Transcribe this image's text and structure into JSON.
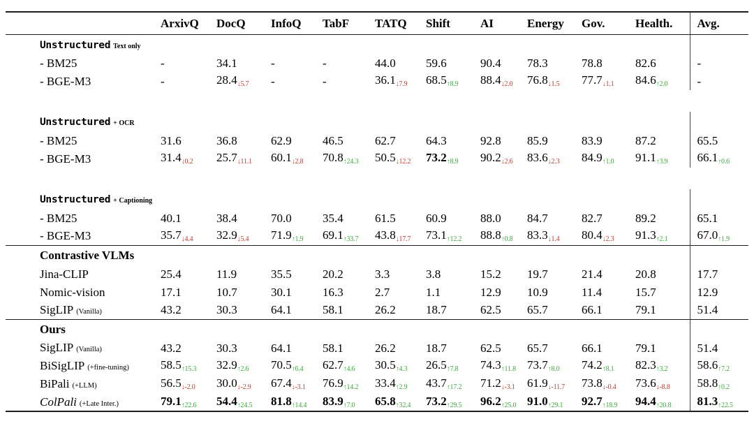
{
  "page": {
    "background": "#ffffff"
  },
  "colors": {
    "up": "#3aa83a",
    "down": "#c0392b",
    "text": "#000000",
    "rule": "#1c1c1c"
  },
  "glyphs": {
    "up_arrow": "↑",
    "down_arrow": "↓"
  },
  "table": {
    "label_col_header": "",
    "columns": [
      "ArxivQ",
      "DocQ",
      "InfoQ",
      "TabF",
      "TATQ",
      "Shift",
      "AI",
      "Energy",
      "Gov.",
      "Health.",
      "Avg."
    ],
    "sections": [
      {
        "id": "unstructured-text-only",
        "head": {
          "text": "Unstructured",
          "style": "mono",
          "note": "Text only",
          "note_style": "bold"
        },
        "rule_before": false,
        "gap_after": true,
        "rows": [
          {
            "label": {
              "text": "- BM25"
            },
            "cells": [
              {
                "v": "-"
              },
              {
                "v": "34.1"
              },
              {
                "v": "-"
              },
              {
                "v": "-"
              },
              {
                "v": "44.0"
              },
              {
                "v": "59.6"
              },
              {
                "v": "90.4"
              },
              {
                "v": "78.3"
              },
              {
                "v": "78.8"
              },
              {
                "v": "82.6"
              },
              {
                "v": "-"
              }
            ]
          },
          {
            "label": {
              "text": "- BGE-M3"
            },
            "cells": [
              {
                "v": "-"
              },
              {
                "v": "28.4",
                "d": "5.7",
                "dir": "down"
              },
              {
                "v": "-"
              },
              {
                "v": "-"
              },
              {
                "v": "36.1",
                "d": "7.9",
                "dir": "down"
              },
              {
                "v": "68.5",
                "d": "8.9",
                "dir": "up"
              },
              {
                "v": "88.4",
                "d": "2.0",
                "dir": "down"
              },
              {
                "v": "76.8",
                "d": "1.5",
                "dir": "down"
              },
              {
                "v": "77.7",
                "d": "1.1",
                "dir": "down"
              },
              {
                "v": "84.6",
                "d": "2.0",
                "dir": "up"
              },
              {
                "v": "-"
              }
            ]
          }
        ]
      },
      {
        "id": "unstructured-ocr",
        "head": {
          "text": "Unstructured",
          "style": "mono",
          "note": "+ OCR",
          "note_style": "bold"
        },
        "rule_before": false,
        "gap_after": true,
        "rows": [
          {
            "label": {
              "text": "- BM25"
            },
            "cells": [
              {
                "v": "31.6"
              },
              {
                "v": "36.8"
              },
              {
                "v": "62.9"
              },
              {
                "v": "46.5"
              },
              {
                "v": "62.7"
              },
              {
                "v": "64.3"
              },
              {
                "v": "92.8"
              },
              {
                "v": "85.9"
              },
              {
                "v": "83.9"
              },
              {
                "v": "87.2"
              },
              {
                "v": "65.5"
              }
            ]
          },
          {
            "label": {
              "text": "- BGE-M3"
            },
            "cells": [
              {
                "v": "31.4",
                "d": "0.2",
                "dir": "down"
              },
              {
                "v": "25.7",
                "d": "11.1",
                "dir": "down"
              },
              {
                "v": "60.1",
                "d": "2.8",
                "dir": "down"
              },
              {
                "v": "70.8",
                "d": "24.3",
                "dir": "up"
              },
              {
                "v": "50.5",
                "d": "12.2",
                "dir": "down"
              },
              {
                "v": "73.2",
                "b": true,
                "d": "8.9",
                "dir": "up"
              },
              {
                "v": "90.2",
                "d": "2.6",
                "dir": "down"
              },
              {
                "v": "83.6",
                "d": "2.3",
                "dir": "down"
              },
              {
                "v": "84.9",
                "d": "1.0",
                "dir": "up"
              },
              {
                "v": "91.1",
                "d": "3.9",
                "dir": "up"
              },
              {
                "v": "66.1",
                "d": "0.6",
                "dir": "up"
              }
            ]
          }
        ]
      },
      {
        "id": "unstructured-captioning",
        "head": {
          "text": "Unstructured",
          "style": "mono",
          "note": "+ Captioning",
          "note_style": "bold"
        },
        "rule_before": false,
        "gap_after": false,
        "rows": [
          {
            "label": {
              "text": "- BM25"
            },
            "cells": [
              {
                "v": "40.1"
              },
              {
                "v": "38.4"
              },
              {
                "v": "70.0"
              },
              {
                "v": "35.4"
              },
              {
                "v": "61.5"
              },
              {
                "v": "60.9"
              },
              {
                "v": "88.0"
              },
              {
                "v": "84.7"
              },
              {
                "v": "82.7"
              },
              {
                "v": "89.2"
              },
              {
                "v": "65.1"
              }
            ]
          },
          {
            "label": {
              "text": "- BGE-M3"
            },
            "cells": [
              {
                "v": "35.7",
                "d": "4.4",
                "dir": "down"
              },
              {
                "v": "32.9",
                "d": "5.4",
                "dir": "down"
              },
              {
                "v": "71.9",
                "d": "1.9",
                "dir": "up"
              },
              {
                "v": "69.1",
                "d": "33.7",
                "dir": "up"
              },
              {
                "v": "43.8",
                "d": "17.7",
                "dir": "down"
              },
              {
                "v": "73.1",
                "d": "12.2",
                "dir": "up"
              },
              {
                "v": "88.8",
                "d": "0.8",
                "dir": "up"
              },
              {
                "v": "83.3",
                "d": "1.4",
                "dir": "down"
              },
              {
                "v": "80.4",
                "d": "2.3",
                "dir": "down"
              },
              {
                "v": "91.3",
                "d": "2.1",
                "dir": "up"
              },
              {
                "v": "67.0",
                "d": "1.9",
                "dir": "up"
              }
            ]
          }
        ]
      },
      {
        "id": "contrastive-vlms",
        "head": {
          "text": "Contrastive VLMs",
          "style": "bold"
        },
        "rule_before": true,
        "gap_after": false,
        "rows": [
          {
            "label": {
              "text": "Jina-CLIP"
            },
            "cells": [
              {
                "v": "25.4"
              },
              {
                "v": "11.9"
              },
              {
                "v": "35.5"
              },
              {
                "v": "20.2"
              },
              {
                "v": "3.3"
              },
              {
                "v": "3.8"
              },
              {
                "v": "15.2"
              },
              {
                "v": "19.7"
              },
              {
                "v": "21.4"
              },
              {
                "v": "20.8"
              },
              {
                "v": "17.7"
              }
            ]
          },
          {
            "label": {
              "text": "Nomic-vision"
            },
            "cells": [
              {
                "v": "17.1"
              },
              {
                "v": "10.7"
              },
              {
                "v": "30.1"
              },
              {
                "v": "16.3"
              },
              {
                "v": "2.7"
              },
              {
                "v": "1.1"
              },
              {
                "v": "12.9"
              },
              {
                "v": "10.9"
              },
              {
                "v": "11.4"
              },
              {
                "v": "15.7"
              },
              {
                "v": "12.9"
              }
            ]
          },
          {
            "label": {
              "text": "SigLIP",
              "note": "(Vanilla)",
              "note_style": "normal"
            },
            "cells": [
              {
                "v": "43.2"
              },
              {
                "v": "30.3"
              },
              {
                "v": "64.1"
              },
              {
                "v": "58.1"
              },
              {
                "v": "26.2"
              },
              {
                "v": "18.7"
              },
              {
                "v": "62.5"
              },
              {
                "v": "65.7"
              },
              {
                "v": "66.1"
              },
              {
                "v": "79.1"
              },
              {
                "v": "51.4"
              }
            ]
          }
        ]
      },
      {
        "id": "ours",
        "head": {
          "text": "Ours",
          "style": "bold"
        },
        "rule_before": true,
        "gap_after": false,
        "rows": [
          {
            "label": {
              "text": "SigLIP",
              "note": "(Vanilla)",
              "note_style": "normal"
            },
            "cells": [
              {
                "v": "43.2"
              },
              {
                "v": "30.3"
              },
              {
                "v": "64.1"
              },
              {
                "v": "58.1"
              },
              {
                "v": "26.2"
              },
              {
                "v": "18.7"
              },
              {
                "v": "62.5"
              },
              {
                "v": "65.7"
              },
              {
                "v": "66.1"
              },
              {
                "v": "79.1"
              },
              {
                "v": "51.4"
              }
            ]
          },
          {
            "label": {
              "text": "BiSigLIP",
              "note": "(+fine-tuning)",
              "note_style": "normal"
            },
            "cells": [
              {
                "v": "58.5",
                "d": "15.3",
                "dir": "up"
              },
              {
                "v": "32.9",
                "d": "2.6",
                "dir": "up"
              },
              {
                "v": "70.5",
                "d": "6.4",
                "dir": "up"
              },
              {
                "v": "62.7",
                "d": "4.6",
                "dir": "up"
              },
              {
                "v": "30.5",
                "d": "4.3",
                "dir": "up"
              },
              {
                "v": "26.5",
                "d": "7.8",
                "dir": "up"
              },
              {
                "v": "74.3",
                "d": "11.8",
                "dir": "up"
              },
              {
                "v": "73.7",
                "d": "8.0",
                "dir": "up"
              },
              {
                "v": "74.2",
                "d": "8.1",
                "dir": "up"
              },
              {
                "v": "82.3",
                "d": "3.2",
                "dir": "up"
              },
              {
                "v": "58.6",
                "d": "7.2",
                "dir": "up"
              }
            ]
          },
          {
            "label": {
              "text": "BiPali",
              "note": "(+LLM)",
              "note_style": "normal"
            },
            "cells": [
              {
                "v": "56.5",
                "d": "-2.0",
                "dir": "down"
              },
              {
                "v": "30.0",
                "d": "-2.9",
                "dir": "down"
              },
              {
                "v": "67.4",
                "d": "-3.1",
                "dir": "down"
              },
              {
                "v": "76.9",
                "d": "14.2",
                "dir": "up"
              },
              {
                "v": "33.4",
                "d": "2.9",
                "dir": "up"
              },
              {
                "v": "43.7",
                "d": "17.2",
                "dir": "up"
              },
              {
                "v": "71.2",
                "d": "-3.1",
                "dir": "down"
              },
              {
                "v": "61.9",
                "d": "-11.7",
                "dir": "down"
              },
              {
                "v": "73.8",
                "d": "-0.4",
                "dir": "down"
              },
              {
                "v": "73.6",
                "d": "-8.8",
                "dir": "down"
              },
              {
                "v": "58.8",
                "d": "0.2",
                "dir": "up"
              }
            ]
          },
          {
            "label": {
              "text": "ColPali",
              "style": "italic",
              "note": "(+Late Inter.)",
              "note_style": "normal"
            },
            "cells": [
              {
                "v": "79.1",
                "b": true,
                "d": "22.6",
                "dir": "up"
              },
              {
                "v": "54.4",
                "b": true,
                "d": "24.5",
                "dir": "up"
              },
              {
                "v": "81.8",
                "b": true,
                "d": "14.4",
                "dir": "up"
              },
              {
                "v": "83.9",
                "b": true,
                "d": "7.0",
                "dir": "up"
              },
              {
                "v": "65.8",
                "b": true,
                "d": "32.4",
                "dir": "up"
              },
              {
                "v": "73.2",
                "b": true,
                "d": "29.5",
                "dir": "up"
              },
              {
                "v": "96.2",
                "b": true,
                "d": "25.0",
                "dir": "up"
              },
              {
                "v": "91.0",
                "b": true,
                "d": "29.1",
                "dir": "up"
              },
              {
                "v": "92.7",
                "b": true,
                "d": "18.9",
                "dir": "up"
              },
              {
                "v": "94.4",
                "b": true,
                "d": "20.8",
                "dir": "up"
              },
              {
                "v": "81.3",
                "b": true,
                "d": "22.5",
                "dir": "up"
              }
            ]
          }
        ]
      }
    ]
  }
}
